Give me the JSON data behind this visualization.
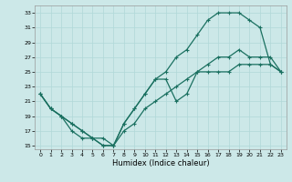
{
  "xlabel": "Humidex (Indice chaleur)",
  "ylabel": "",
  "bg_color": "#cce8e8",
  "line_color": "#1a7060",
  "grid_color": "#b0d8d8",
  "xlim": [
    -0.5,
    23.5
  ],
  "ylim": [
    14.5,
    34
  ],
  "xticks": [
    0,
    1,
    2,
    3,
    4,
    5,
    6,
    7,
    8,
    9,
    10,
    11,
    12,
    13,
    14,
    15,
    16,
    17,
    18,
    19,
    20,
    21,
    22,
    23
  ],
  "yticks": [
    15,
    17,
    19,
    21,
    23,
    25,
    27,
    29,
    31,
    33
  ],
  "line1_x": [
    0,
    1,
    2,
    3,
    4,
    5,
    6,
    7,
    8,
    9,
    10,
    11,
    12,
    13,
    14,
    15,
    16,
    17,
    18,
    19,
    20,
    21,
    22,
    23
  ],
  "line1_y": [
    22,
    20,
    19,
    17,
    16,
    16,
    16,
    15,
    18,
    20,
    22,
    24,
    24,
    21,
    22,
    25,
    25,
    25,
    25,
    26,
    26,
    26,
    26,
    25
  ],
  "line2_x": [
    0,
    1,
    2,
    3,
    4,
    5,
    6,
    7,
    8,
    9,
    10,
    11,
    12,
    13,
    14,
    15,
    16,
    17,
    18,
    19,
    20,
    21,
    22,
    23
  ],
  "line2_y": [
    22,
    20,
    19,
    18,
    17,
    16,
    15,
    15,
    18,
    20,
    22,
    24,
    25,
    27,
    28,
    30,
    32,
    33,
    33,
    33,
    32,
    31,
    26,
    25
  ],
  "line3_x": [
    0,
    1,
    2,
    3,
    4,
    5,
    6,
    7,
    8,
    9,
    10,
    11,
    12,
    13,
    14,
    15,
    16,
    17,
    18,
    19,
    20,
    21,
    22,
    23
  ],
  "line3_y": [
    22,
    20,
    19,
    18,
    17,
    16,
    15,
    15,
    17,
    18,
    20,
    21,
    22,
    23,
    24,
    25,
    26,
    27,
    27,
    28,
    27,
    27,
    27,
    25
  ]
}
